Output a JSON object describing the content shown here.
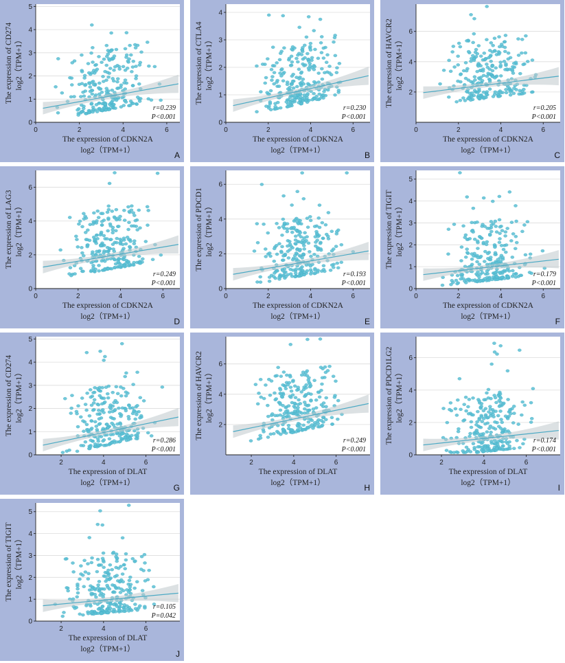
{
  "colors": {
    "panel_background": "#a9b6db",
    "points": "#5bbfd4",
    "fit_line": "#4aa9c4",
    "ci_band": "#bfc8cc"
  },
  "chart_data": [
    {
      "panel": "A",
      "type": "scatter",
      "ylabel_line1": "The expression of CD274",
      "ylabel_line2": "log2（TPM+1）",
      "xlabel_line1": "The expression of CDKN2A",
      "xlabel_line2": "log2（TPM+1）",
      "xlim": [
        0,
        6.6
      ],
      "ylim": [
        0,
        5.1
      ],
      "xticks": [
        0,
        2,
        4,
        6
      ],
      "yticks": [
        0,
        1,
        2,
        3,
        4,
        5
      ],
      "stat_r": "r=0.239",
      "stat_p": "P<0.001",
      "fit": {
        "intercept": 0.55,
        "slope": 0.17
      },
      "n_points": 260
    },
    {
      "panel": "B",
      "type": "scatter",
      "ylabel_line1": "The expression of CTLA4",
      "ylabel_line2": "log2（TPM+1）",
      "xlabel_line1": "The expression of CDKN2A",
      "xlabel_line2": "log2（TPM+1）",
      "xlim": [
        0,
        6.8
      ],
      "ylim": [
        0,
        4.3
      ],
      "xticks": [
        0,
        2,
        4,
        6
      ],
      "yticks": [
        0,
        1,
        2,
        3,
        4
      ],
      "stat_r": "r=0.230",
      "stat_p": "P<0.001",
      "fit": {
        "intercept": 0.55,
        "slope": 0.17
      },
      "n_points": 260
    },
    {
      "panel": "C",
      "type": "scatter",
      "ylabel_line1": "The expression of HAVCR2",
      "ylabel_line2": "log2（TPM+1）",
      "xlabel_line1": "The expression of CDKN2A",
      "xlabel_line2": "log2（TPM+1）",
      "xlim": [
        0,
        6.8
      ],
      "ylim": [
        0,
        7.8
      ],
      "xticks": [
        0,
        2,
        4,
        6
      ],
      "yticks": [
        2,
        4,
        6
      ],
      "stat_r": "r=0.205",
      "stat_p": "P<0.001",
      "fit": {
        "intercept": 1.9,
        "slope": 0.17
      },
      "n_points": 260
    },
    {
      "panel": "D",
      "type": "scatter",
      "ylabel_line1": "The expression of LAG3",
      "ylabel_line2": "log2（TPM+1）",
      "xlabel_line1": "The expression of CDKN2A",
      "xlabel_line2": "log2（TPM+1）",
      "xlim": [
        0,
        6.8
      ],
      "ylim": [
        0,
        7.0
      ],
      "xticks": [
        0,
        2,
        4,
        6
      ],
      "yticks": [
        0,
        2,
        4,
        6
      ],
      "stat_r": "r=0.249",
      "stat_p": "P<0.001",
      "fit": {
        "intercept": 1.2,
        "slope": 0.21
      },
      "n_points": 260
    },
    {
      "panel": "E",
      "type": "scatter",
      "ylabel_line1": "The expression of PDCD1",
      "ylabel_line2": "log2（TPM+1）",
      "xlabel_line1": "The expression of CDKN2A",
      "xlabel_line2": "log2（TPM+1）",
      "xlim": [
        0,
        6.8
      ],
      "ylim": [
        0,
        6.8
      ],
      "xticks": [
        0,
        2,
        4,
        6
      ],
      "yticks": [
        0,
        2,
        4,
        6
      ],
      "stat_r": "r=0.193",
      "stat_p": "P<0.001",
      "fit": {
        "intercept": 0.75,
        "slope": 0.21
      },
      "n_points": 260
    },
    {
      "panel": "F",
      "type": "scatter",
      "ylabel_line1": "The expression of TIGIT",
      "ylabel_line2": "log2（TPM+1）",
      "xlabel_line1": "The expression of CDKN2A",
      "xlabel_line2": "log2（TPM+1）",
      "xlim": [
        0,
        6.8
      ],
      "ylim": [
        0,
        5.4
      ],
      "xticks": [
        0,
        2,
        4,
        6
      ],
      "yticks": [
        0,
        1,
        2,
        3,
        4,
        5
      ],
      "stat_r": "r=0.179",
      "stat_p": "P<0.001",
      "fit": {
        "intercept": 0.6,
        "slope": 0.11
      },
      "n_points": 260
    },
    {
      "panel": "G",
      "type": "scatter",
      "ylabel_line1": "The expression of CD274",
      "ylabel_line2": "log2（TPM+1）",
      "xlabel_line1": "The expression of DLAT",
      "xlabel_line2": "log2（TPM+1）",
      "xlim": [
        0.8,
        7.6
      ],
      "ylim": [
        0,
        5.1
      ],
      "xticks": [
        2,
        4,
        6
      ],
      "yticks": [
        0,
        1,
        2,
        3,
        4,
        5
      ],
      "stat_r": "r=0.286",
      "stat_p": "P<0.001",
      "fit": {
        "intercept": 0.2,
        "slope": 0.19
      },
      "n_points": 260
    },
    {
      "panel": "H",
      "type": "scatter",
      "ylabel_line1": "The expression of HAVCR2",
      "ylabel_line2": "log2（TPM+1）",
      "xlabel_line1": "The expression of DLAT",
      "xlabel_line2": "log2（TPM+1）",
      "xlim": [
        0.8,
        7.6
      ],
      "ylim": [
        0,
        7.8
      ],
      "xticks": [
        2,
        4,
        6
      ],
      "yticks": [
        2,
        4,
        6
      ],
      "stat_r": "r=0.249",
      "stat_p": "P<0.001",
      "fit": {
        "intercept": 1.2,
        "slope": 0.29
      },
      "n_points": 260
    },
    {
      "panel": "I",
      "type": "scatter",
      "ylabel_line1": "The expression of PDCD1LG2",
      "ylabel_line2": "log2（TPM+1）",
      "xlabel_line1": "The expression of DLAT",
      "xlabel_line2": "log2（TPM+1）",
      "xlim": [
        0.8,
        7.6
      ],
      "ylim": [
        0,
        7.3
      ],
      "xticks": [
        2,
        4,
        6
      ],
      "yticks": [
        0,
        2,
        4,
        6
      ],
      "stat_r": "r=0.174",
      "stat_p": "P<0.001",
      "fit": {
        "intercept": 0.45,
        "slope": 0.14
      },
      "n_points": 260
    },
    {
      "panel": "J",
      "type": "scatter",
      "ylabel_line1": "The expression of TIGIT",
      "ylabel_line2": "log2（TPM+1）",
      "xlabel_line1": "The expression of DLAT",
      "xlabel_line2": "log2（TPM+1）",
      "xlim": [
        0.8,
        7.6
      ],
      "ylim": [
        0,
        5.4
      ],
      "xticks": [
        2,
        4,
        6
      ],
      "yticks": [
        0,
        1,
        2,
        3,
        4,
        5
      ],
      "stat_r": "r=0.105",
      "stat_p": "P=0.042",
      "fit": {
        "intercept": 0.6,
        "slope": 0.09
      },
      "n_points": 260
    }
  ]
}
